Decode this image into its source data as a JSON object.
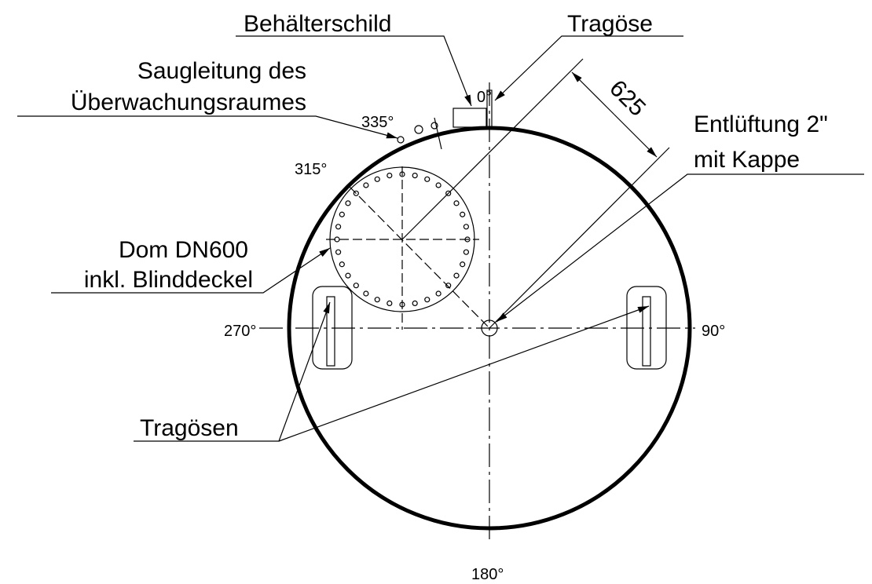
{
  "labels": {
    "behaelterschild": "Behälterschild",
    "tragoese": "Tragöse",
    "saugleitung_1": "Saugleitung des",
    "saugleitung_2": "Überwachungsraumes",
    "entlueftung_1": "Entlüftung 2\"",
    "entlueftung_2": "mit Kappe",
    "dom_1": "Dom DN600",
    "dom_2": "inkl. Blinddeckel",
    "tragoesen": "Tragösen",
    "dimension": "625",
    "angle_0": "0°",
    "angle_335": "335°",
    "angle_315": "315°",
    "angle_270": "270°",
    "angle_90": "90°",
    "angle_180": "180°"
  }
}
